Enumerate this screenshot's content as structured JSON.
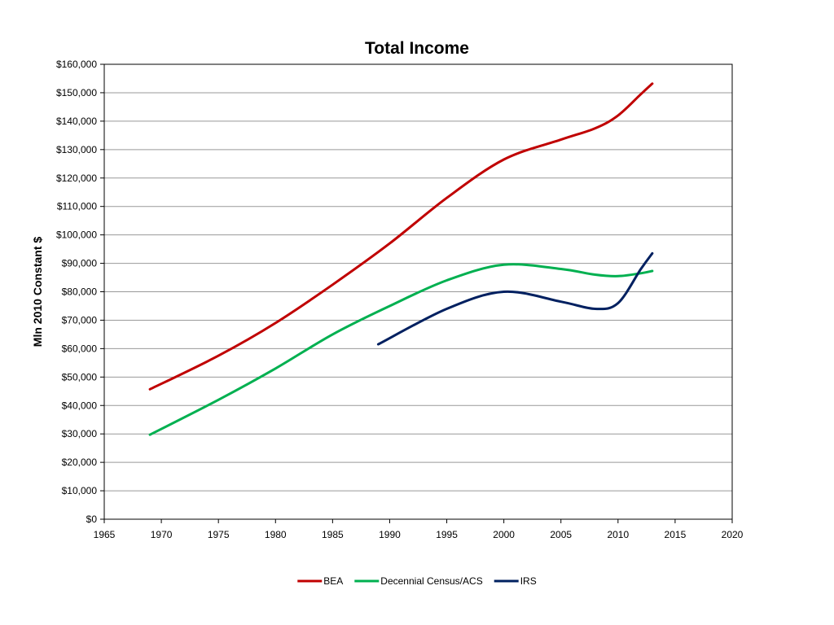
{
  "chart_data": {
    "type": "line",
    "title": "Total Income",
    "xlabel": "",
    "ylabel": "Mln 2010 Constant $",
    "xlim": [
      1965,
      2020
    ],
    "ylim": [
      0,
      160000
    ],
    "x_ticks": [
      1965,
      1970,
      1975,
      1980,
      1985,
      1990,
      1995,
      2000,
      2005,
      2010,
      2015,
      2020
    ],
    "x_tick_labels": [
      "1965",
      "1970",
      "1975",
      "1980",
      "1985",
      "1990",
      "1995",
      "2000",
      "2005",
      "2010",
      "2015",
      "2020"
    ],
    "y_ticks": [
      0,
      10000,
      20000,
      30000,
      40000,
      50000,
      60000,
      70000,
      80000,
      90000,
      100000,
      110000,
      120000,
      130000,
      140000,
      150000,
      160000
    ],
    "y_tick_labels": [
      "$0",
      "$10,000",
      "$20,000",
      "$30,000",
      "$40,000",
      "$50,000",
      "$60,000",
      "$70,000",
      "$80,000",
      "$90,000",
      "$100,000",
      "$110,000",
      "$120,000",
      "$130,000",
      "$140,000",
      "$150,000",
      "$160,000"
    ],
    "grid": "horizontal",
    "legend_position": "bottom",
    "series": [
      {
        "name": "BEA",
        "color": "#C00000",
        "points": [
          [
            1969,
            45700
          ],
          [
            1975,
            57500
          ],
          [
            1980,
            69000
          ],
          [
            1985,
            82500
          ],
          [
            1990,
            97000
          ],
          [
            1995,
            113000
          ],
          [
            2000,
            126500
          ],
          [
            2005,
            133500
          ],
          [
            2008,
            137500
          ],
          [
            2010,
            142000
          ],
          [
            2012,
            149500
          ],
          [
            2013,
            153200
          ]
        ]
      },
      {
        "name": "Decennial Census/ACS",
        "color": "#00B050",
        "points": [
          [
            1969,
            29700
          ],
          [
            1975,
            42000
          ],
          [
            1980,
            53000
          ],
          [
            1985,
            65000
          ],
          [
            1990,
            75000
          ],
          [
            1995,
            84000
          ],
          [
            2000,
            89500
          ],
          [
            2005,
            88000
          ],
          [
            2008,
            86000
          ],
          [
            2010,
            85500
          ],
          [
            2012,
            86500
          ],
          [
            2013,
            87300
          ]
        ]
      },
      {
        "name": "IRS",
        "color": "#002060",
        "points": [
          [
            1989,
            61500
          ],
          [
            1995,
            74000
          ],
          [
            2000,
            80000
          ],
          [
            2005,
            76500
          ],
          [
            2008,
            74000
          ],
          [
            2010,
            76000
          ],
          [
            2012,
            88000
          ],
          [
            2013,
            93500
          ]
        ]
      }
    ]
  }
}
